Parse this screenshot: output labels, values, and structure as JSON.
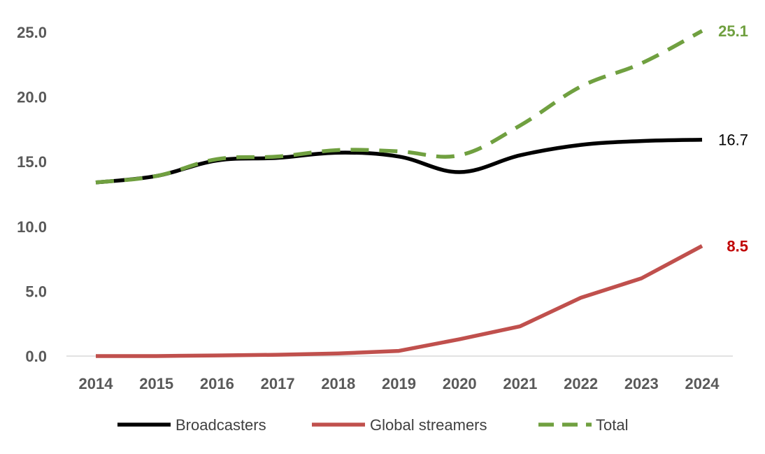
{
  "chart_data": {
    "type": "line",
    "categories": [
      "2014",
      "2015",
      "2016",
      "2017",
      "2018",
      "2019",
      "2020",
      "2021",
      "2022",
      "2023",
      "2024"
    ],
    "ylim": [
      0,
      25
    ],
    "yticks": [
      "0.0",
      "5.0",
      "10.0",
      "15.0",
      "20.0",
      "25.0"
    ],
    "grid": false,
    "legend_position": "bottom",
    "series": [
      {
        "name": "Broadcasters",
        "color": "#000000",
        "dash": "solid",
        "smooth": true,
        "values": [
          13.4,
          13.9,
          15.1,
          15.3,
          15.7,
          15.4,
          14.2,
          15.5,
          16.3,
          16.6,
          16.7
        ],
        "end_label": "16.7"
      },
      {
        "name": "Global streamers",
        "color": "#C0504D",
        "dash": "solid",
        "smooth": false,
        "values": [
          0.0,
          0.0,
          0.05,
          0.1,
          0.2,
          0.4,
          1.3,
          2.3,
          4.5,
          6.0,
          8.5
        ],
        "end_label": "8.5"
      },
      {
        "name": "Total",
        "color": "#70A040",
        "dash": "dashed",
        "smooth": true,
        "values": [
          13.4,
          13.9,
          15.2,
          15.4,
          15.9,
          15.8,
          15.5,
          17.8,
          20.8,
          22.6,
          25.1
        ],
        "end_label": "25.1"
      }
    ],
    "end_label_colors": {
      "Broadcasters": "#000000",
      "Global streamers": "#C00000",
      "Total": "#70A040"
    }
  }
}
